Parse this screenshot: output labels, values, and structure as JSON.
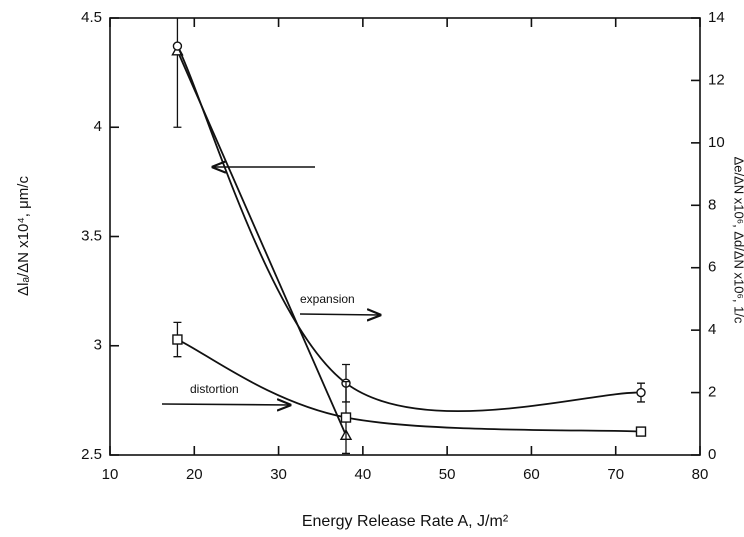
{
  "chart_data": {
    "type": "line",
    "x_label": "Energy Release Rate A, J/m²",
    "y_label": "Δlₐ/ΔN  x10⁴, μm/c",
    "y2_label": "Δe/ΔN x10⁶, Δd/ΔN x10⁶, 1/c",
    "xlim": [
      10,
      80
    ],
    "xticks": [
      10,
      20,
      30,
      40,
      50,
      60,
      70,
      80
    ],
    "ylim": [
      2.5,
      4.5
    ],
    "yticks": [
      2.5,
      3,
      3.5,
      4,
      4.5
    ],
    "y2lim": [
      0,
      14
    ],
    "y2ticks": [
      0,
      2,
      4,
      6,
      8,
      10,
      12,
      14
    ],
    "series": [
      {
        "marker": "triangle",
        "color": "#111111",
        "x": [
          18,
          38
        ],
        "values": [
          4.35,
          2.59
        ],
        "errors": [
          0.35,
          null
        ]
      },
      {
        "marker": "circle",
        "color": "#111111",
        "axis": "y2",
        "x": [
          18,
          38,
          73
        ],
        "values": [
          13.1,
          2.3,
          2.0
        ],
        "errors": [
          null,
          0.6,
          0.3
        ]
      },
      {
        "marker": "square",
        "color": "#111111",
        "axis": "y2",
        "x": [
          18,
          38,
          73
        ],
        "values": [
          3.7,
          1.2,
          0.75
        ],
        "errors": [
          0.55,
          1.15,
          null
        ]
      }
    ],
    "annotations": [
      "expansion",
      "distortion"
    ]
  }
}
